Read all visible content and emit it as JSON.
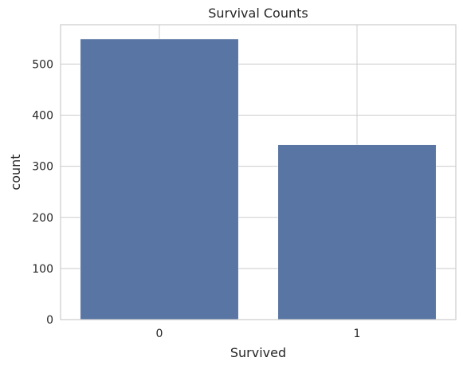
{
  "chart_data": {
    "type": "bar",
    "title": "Survival Counts",
    "xlabel": "Survived",
    "ylabel": "count",
    "categories": [
      "0",
      "1"
    ],
    "values": [
      549,
      342
    ],
    "ylim": [
      0,
      577
    ],
    "yticks": [
      0,
      100,
      200,
      300,
      400,
      500
    ],
    "grid": true,
    "bar_color": "#5875a4",
    "grid_color": "#cccccc",
    "frame_color": "#cccccc"
  }
}
